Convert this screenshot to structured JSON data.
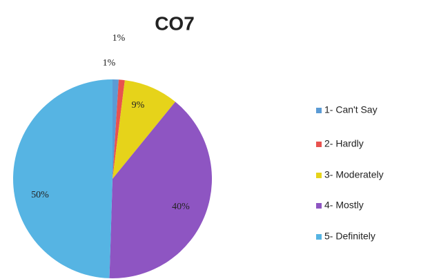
{
  "chart_data": {
    "type": "pie",
    "title": "CO7",
    "categories": [
      "1- Can't Say",
      "2- Hardly",
      "3- Moderately",
      "4- Mostly",
      "5- Definitely"
    ],
    "values": [
      1,
      1,
      9,
      40,
      50
    ],
    "value_labels": [
      "1%",
      "1%",
      "9%",
      "40%",
      "50%"
    ],
    "colors": [
      "#5b9bd5",
      "#e8524f",
      "#e6d31a",
      "#8e55c2",
      "#56b4e3"
    ],
    "legend": "right"
  }
}
